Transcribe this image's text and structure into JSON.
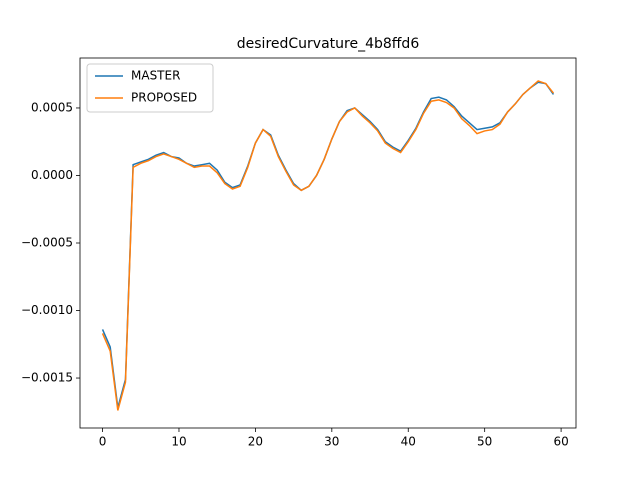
{
  "chart_data": {
    "type": "line",
    "title": "desiredCurvature_4b8ffd6",
    "x": [
      0,
      1,
      2,
      3,
      4,
      5,
      6,
      7,
      8,
      9,
      10,
      11,
      12,
      13,
      14,
      15,
      16,
      17,
      18,
      19,
      20,
      21,
      22,
      23,
      24,
      25,
      26,
      27,
      28,
      29,
      30,
      31,
      32,
      33,
      34,
      35,
      36,
      37,
      38,
      39,
      40,
      41,
      42,
      43,
      44,
      45,
      46,
      47,
      48,
      49,
      50,
      51,
      52,
      53,
      54,
      55,
      56,
      57,
      58,
      59
    ],
    "series": [
      {
        "name": "MASTER",
        "color": "#1f77b4",
        "values": [
          -0.00114,
          -0.00127,
          -0.00172,
          -0.00151,
          8e-05,
          0.0001,
          0.00012,
          0.00015,
          0.00017,
          0.00014,
          0.00013,
          9e-05,
          7e-05,
          8e-05,
          9e-05,
          4e-05,
          -5e-05,
          -9e-05,
          -7e-05,
          7e-05,
          0.00024,
          0.00034,
          0.0003,
          0.00015,
          4e-05,
          -6e-05,
          -0.00011,
          -8e-05,
          0.0,
          0.00012,
          0.00027,
          0.0004,
          0.00048,
          0.0005,
          0.00045,
          0.0004,
          0.00034,
          0.00025,
          0.00021,
          0.00018,
          0.00026,
          0.00035,
          0.00047,
          0.00057,
          0.00058,
          0.00056,
          0.00051,
          0.00044,
          0.00039,
          0.00034,
          0.00035,
          0.00036,
          0.00039,
          0.00047,
          0.00053,
          0.0006,
          0.00065,
          0.00069,
          0.00068,
          0.0006
        ]
      },
      {
        "name": "PROPOSED",
        "color": "#ff7f0e",
        "values": [
          -0.00117,
          -0.0013,
          -0.00174,
          -0.00153,
          6e-05,
          9e-05,
          0.00011,
          0.00014,
          0.00016,
          0.00014,
          0.00012,
          9e-05,
          6e-05,
          7e-05,
          7e-05,
          2e-05,
          -6e-05,
          -0.0001,
          -8e-05,
          6e-05,
          0.00024,
          0.00034,
          0.00029,
          0.00014,
          3e-05,
          -7e-05,
          -0.00011,
          -8e-05,
          0.0,
          0.00012,
          0.00027,
          0.0004,
          0.00047,
          0.0005,
          0.00044,
          0.00039,
          0.00033,
          0.00024,
          0.0002,
          0.00017,
          0.00025,
          0.00034,
          0.00046,
          0.00055,
          0.00056,
          0.00054,
          0.0005,
          0.00042,
          0.00037,
          0.00031,
          0.00033,
          0.00034,
          0.00038,
          0.00047,
          0.00053,
          0.0006,
          0.00065,
          0.0007,
          0.00068,
          0.00061
        ]
      }
    ],
    "xlim": [
      -2.95,
      61.95
    ],
    "xticks": [
      0,
      10,
      20,
      30,
      40,
      50,
      60
    ],
    "ylim": [
      -0.00187,
      0.00087
    ],
    "yticks": [
      {
        "value": -0.0015,
        "label": "−0.0015"
      },
      {
        "value": -0.001,
        "label": "−0.0010"
      },
      {
        "value": -0.0005,
        "label": "−0.0005"
      },
      {
        "value": 0,
        "label": "0.0000"
      },
      0.0005
    ],
    "legend": "upper left"
  }
}
